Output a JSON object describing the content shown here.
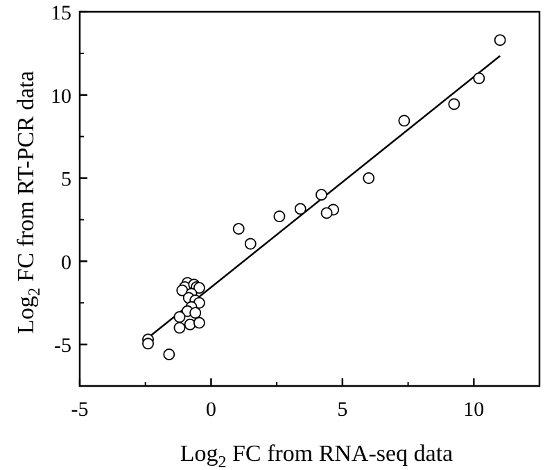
{
  "chart_data": {
    "type": "scatter",
    "title": "",
    "xlabel": {
      "main": "Log",
      "sub": "2",
      "rest": " FC from RNA-seq data"
    },
    "ylabel": {
      "main": "Log",
      "sub": "2",
      "rest": " FC from RT-PCR data"
    },
    "xlim": [
      -5,
      12.5
    ],
    "ylim": [
      -7.5,
      15
    ],
    "xticks": [
      -5,
      0,
      5,
      10
    ],
    "yticks": [
      -5,
      0,
      5,
      10,
      15
    ],
    "xtick_labels": [
      "-5",
      "0",
      "5",
      "10"
    ],
    "ytick_labels": [
      "-5",
      "0",
      "5",
      "10",
      "15"
    ],
    "grid": false,
    "legend": "none",
    "marker": "open-circle",
    "points": [
      {
        "x": 11.0,
        "y": 13.3
      },
      {
        "x": 10.2,
        "y": 11.0
      },
      {
        "x": 9.25,
        "y": 9.45
      },
      {
        "x": 7.35,
        "y": 8.45
      },
      {
        "x": 6.0,
        "y": 5.0
      },
      {
        "x": 4.2,
        "y": 4.0
      },
      {
        "x": 4.65,
        "y": 3.1
      },
      {
        "x": 4.4,
        "y": 2.9
      },
      {
        "x": 3.4,
        "y": 3.15
      },
      {
        "x": 2.6,
        "y": 2.7
      },
      {
        "x": 1.05,
        "y": 1.95
      },
      {
        "x": 1.5,
        "y": 1.05
      },
      {
        "x": -0.9,
        "y": -1.3
      },
      {
        "x": -1.0,
        "y": -1.55
      },
      {
        "x": -1.1,
        "y": -1.75
      },
      {
        "x": -0.65,
        "y": -1.4
      },
      {
        "x": -0.55,
        "y": -1.55
      },
      {
        "x": -0.45,
        "y": -1.6
      },
      {
        "x": -0.75,
        "y": -1.95
      },
      {
        "x": -0.85,
        "y": -2.2
      },
      {
        "x": -0.6,
        "y": -2.35
      },
      {
        "x": -0.45,
        "y": -2.5
      },
      {
        "x": -0.75,
        "y": -2.75
      },
      {
        "x": -0.9,
        "y": -3.0
      },
      {
        "x": -0.6,
        "y": -3.1
      },
      {
        "x": -1.2,
        "y": -3.35
      },
      {
        "x": -0.8,
        "y": -3.8
      },
      {
        "x": -0.45,
        "y": -3.7
      },
      {
        "x": -1.2,
        "y": -4.0
      },
      {
        "x": -2.4,
        "y": -4.7
      },
      {
        "x": -2.4,
        "y": -4.95
      },
      {
        "x": -1.6,
        "y": -5.6
      }
    ],
    "fit_line": {
      "x": [
        -2.4,
        11.0
      ],
      "y": [
        -4.6,
        12.35
      ]
    }
  }
}
